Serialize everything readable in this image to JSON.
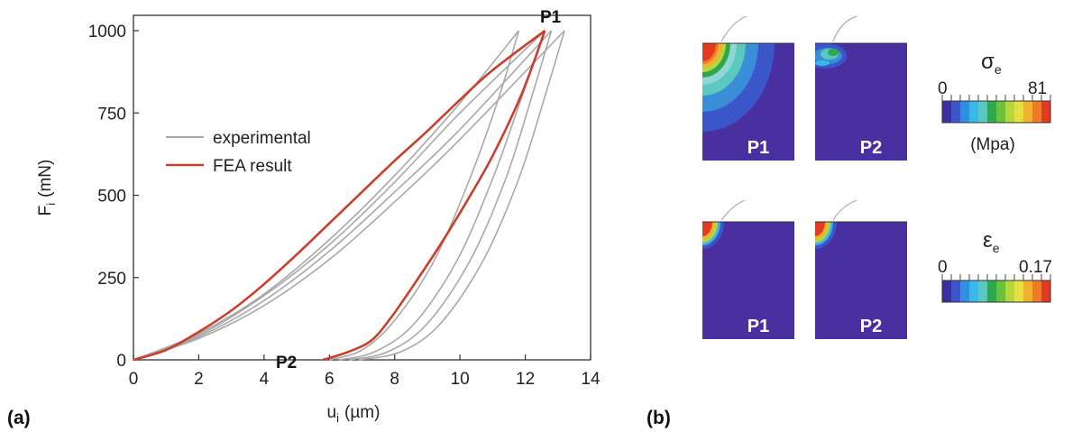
{
  "chart_data": {
    "type": "line",
    "xlabel_main": "u",
    "xlabel_sub": "i",
    "xlabel_unit": "(µm)",
    "ylabel_main": "F",
    "ylabel_sub": "i",
    "ylabel_unit": "(mN)",
    "xlim": [
      0,
      14
    ],
    "ylim": [
      0,
      1000
    ],
    "xticks": [
      "0",
      "2",
      "4",
      "6",
      "8",
      "10",
      "12",
      "14"
    ],
    "yticks": [
      "0",
      "250",
      "500",
      "750",
      "1000"
    ],
    "legend": {
      "position": "upper-left",
      "entries": [
        "experimental",
        "FEA result"
      ]
    },
    "colors": {
      "experimental": "#a8a8a8",
      "fea": "#c8402c"
    },
    "annotations": [
      {
        "text": "P1",
        "x": 12.6,
        "y": 1000
      },
      {
        "text": "P2",
        "x": 5.5,
        "y": 0
      }
    ],
    "series": [
      {
        "name": "experimental",
        "loading": [
          {
            "peak_x": 11.8,
            "points": [
              [
                0,
                0
              ],
              [
                2,
                80
              ],
              [
                4,
                200
              ],
              [
                6,
                365
              ],
              [
                8,
                560
              ],
              [
                10,
                780
              ],
              [
                11.8,
                1000
              ]
            ]
          },
          {
            "peak_x": 12.6,
            "points": [
              [
                0,
                0
              ],
              [
                2,
                75
              ],
              [
                4,
                195
              ],
              [
                6,
                350
              ],
              [
                8,
                540
              ],
              [
                10,
                750
              ],
              [
                12.6,
                1000
              ]
            ]
          },
          {
            "peak_x": 12.8,
            "points": [
              [
                0,
                0
              ],
              [
                2,
                70
              ],
              [
                4,
                180
              ],
              [
                6,
                330
              ],
              [
                8,
                510
              ],
              [
                10,
                700
              ],
              [
                12.8,
                1000
              ]
            ]
          },
          {
            "peak_x": 13.2,
            "points": [
              [
                0,
                0
              ],
              [
                2,
                65
              ],
              [
                4,
                165
              ],
              [
                6,
                305
              ],
              [
                8,
                480
              ],
              [
                10,
                670
              ],
              [
                13.2,
                1000
              ]
            ]
          }
        ],
        "unloading": [
          {
            "points": [
              [
                11.8,
                1000
              ],
              [
                11.2,
                800
              ],
              [
                10.3,
                550
              ],
              [
                9.2,
                300
              ],
              [
                8.0,
                120
              ],
              [
                7.0,
                30
              ],
              [
                6.0,
                0
              ]
            ]
          },
          {
            "points": [
              [
                12.6,
                1000
              ],
              [
                11.9,
                800
              ],
              [
                11.0,
                550
              ],
              [
                9.9,
                300
              ],
              [
                8.6,
                110
              ],
              [
                7.4,
                25
              ],
              [
                6.3,
                0
              ]
            ]
          },
          {
            "points": [
              [
                12.8,
                1000
              ],
              [
                12.2,
                800
              ],
              [
                11.4,
                550
              ],
              [
                10.3,
                300
              ],
              [
                9.0,
                110
              ],
              [
                7.8,
                25
              ],
              [
                6.6,
                0
              ]
            ]
          },
          {
            "points": [
              [
                13.2,
                1000
              ],
              [
                12.6,
                800
              ],
              [
                11.8,
                550
              ],
              [
                10.7,
                300
              ],
              [
                9.4,
                110
              ],
              [
                8.2,
                25
              ],
              [
                6.9,
                0
              ]
            ]
          }
        ]
      },
      {
        "name": "FEA result",
        "loading": [
          [
            0,
            0
          ],
          [
            1,
            30
          ],
          [
            2,
            85
          ],
          [
            3,
            150
          ],
          [
            4,
            230
          ],
          [
            5,
            320
          ],
          [
            6,
            415
          ],
          [
            7,
            510
          ],
          [
            8,
            605
          ],
          [
            9,
            695
          ],
          [
            10,
            790
          ],
          [
            11,
            880
          ],
          [
            12.6,
            1000
          ]
        ],
        "unloading": [
          [
            12.6,
            1000
          ],
          [
            11.9,
            810
          ],
          [
            11.0,
            620
          ],
          [
            10.2,
            480
          ],
          [
            9.4,
            350
          ],
          [
            8.6,
            230
          ],
          [
            7.9,
            130
          ],
          [
            7.3,
            60
          ],
          [
            6.6,
            25
          ],
          [
            5.8,
            0
          ]
        ]
      }
    ]
  },
  "panel_a": {
    "label": "(a)"
  },
  "panel_b": {
    "label": "(b)",
    "stress": {
      "symbol": "σ",
      "sub": "e",
      "min": "0",
      "max": "81",
      "unit": "(Mpa)"
    },
    "strain": {
      "symbol": "ε",
      "sub": "e",
      "min": "0",
      "max": "0.17"
    },
    "tiles": [
      {
        "label": "P1"
      },
      {
        "label": "P2"
      },
      {
        "label": "P1"
      },
      {
        "label": "P2"
      }
    ],
    "colorbar": [
      "#3b2ea0",
      "#3a56c8",
      "#2f8fe0",
      "#3ab8e8",
      "#5cc9c0",
      "#2ea84a",
      "#6cc03a",
      "#b6d63a",
      "#e8e040",
      "#f2b030",
      "#ee7a2a",
      "#e33a22"
    ],
    "background_color": "#4a2fa0"
  }
}
